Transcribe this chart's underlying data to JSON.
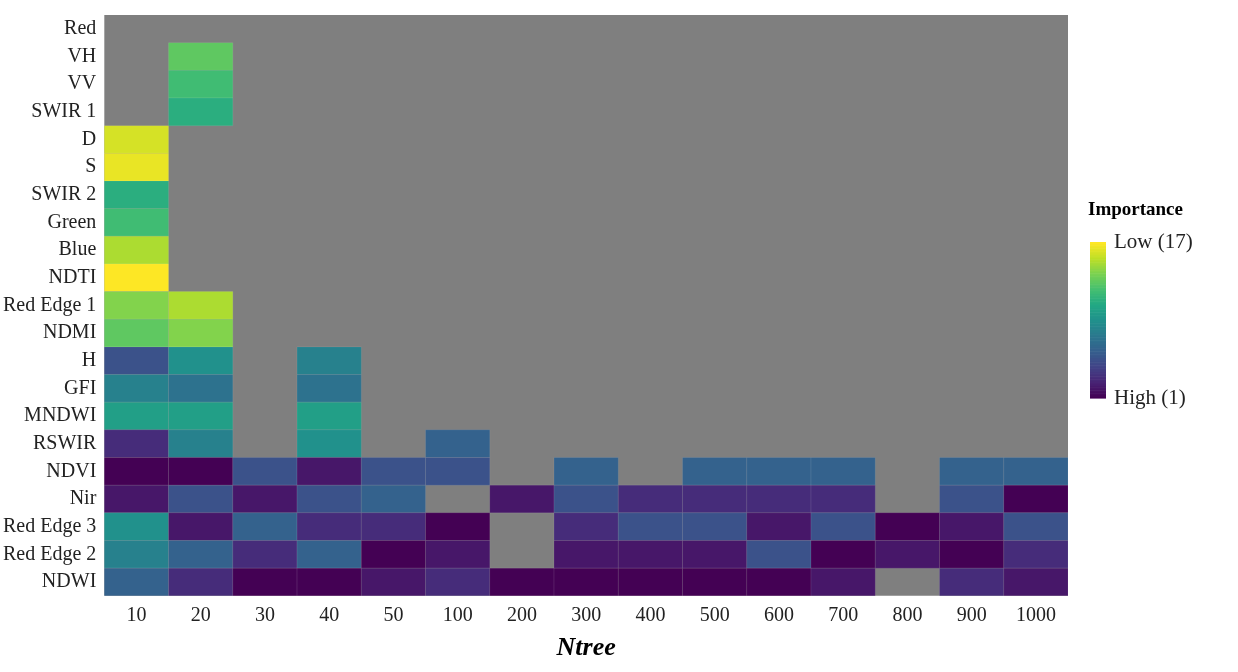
{
  "chart_data": {
    "type": "heatmap",
    "xlabel": "Ntree",
    "clabel": "Importance",
    "categories": [
      "10",
      "20",
      "30",
      "40",
      "50",
      "100",
      "200",
      "300",
      "400",
      "500",
      "600",
      "700",
      "800",
      "900",
      "1000"
    ],
    "y_categories": [
      "Red",
      "VH",
      "VV",
      "SWIR 1",
      "D",
      "S",
      "SWIR 2",
      "Green",
      "Blue",
      "NDTI",
      "Red Edge 1",
      "NDMI",
      "H",
      "GFI",
      "MNDWI",
      "RSWIR",
      "NDVI",
      "Nir",
      "Red Edge 3",
      "Red Edge 2",
      "NDWI"
    ],
    "cells": [
      [
        null,
        null,
        null,
        null,
        null,
        null,
        null,
        null,
        null,
        null,
        null,
        null,
        null,
        null,
        null
      ],
      [
        null,
        13,
        null,
        null,
        null,
        null,
        null,
        null,
        null,
        null,
        null,
        null,
        null,
        null,
        null
      ],
      [
        null,
        12,
        null,
        null,
        null,
        null,
        null,
        null,
        null,
        null,
        null,
        null,
        null,
        null,
        null
      ],
      [
        null,
        11,
        null,
        null,
        null,
        null,
        null,
        null,
        null,
        null,
        null,
        null,
        null,
        null,
        null
      ],
      [
        16,
        null,
        null,
        null,
        null,
        null,
        null,
        null,
        null,
        null,
        null,
        null,
        null,
        null,
        null
      ],
      [
        16.5,
        null,
        null,
        null,
        null,
        null,
        null,
        null,
        null,
        null,
        null,
        null,
        null,
        null,
        null
      ],
      [
        11,
        null,
        null,
        null,
        null,
        null,
        null,
        null,
        null,
        null,
        null,
        null,
        null,
        null,
        null
      ],
      [
        12,
        null,
        null,
        null,
        null,
        null,
        null,
        null,
        null,
        null,
        null,
        null,
        null,
        null,
        null
      ],
      [
        15,
        null,
        null,
        null,
        null,
        null,
        null,
        null,
        null,
        null,
        null,
        null,
        null,
        null,
        null
      ],
      [
        17,
        null,
        null,
        null,
        null,
        null,
        null,
        null,
        null,
        null,
        null,
        null,
        null,
        null,
        null
      ],
      [
        14,
        15,
        null,
        null,
        null,
        null,
        null,
        null,
        null,
        null,
        null,
        null,
        null,
        null,
        null
      ],
      [
        13,
        14,
        null,
        null,
        null,
        null,
        null,
        null,
        null,
        null,
        null,
        null,
        null,
        null,
        null
      ],
      [
        5,
        9,
        null,
        8,
        null,
        null,
        null,
        null,
        null,
        null,
        null,
        null,
        null,
        null,
        null
      ],
      [
        8,
        7,
        null,
        7,
        null,
        null,
        null,
        null,
        null,
        null,
        null,
        null,
        null,
        null,
        null
      ],
      [
        10,
        10,
        null,
        10,
        null,
        null,
        null,
        null,
        null,
        null,
        null,
        null,
        null,
        null,
        null
      ],
      [
        3,
        8,
        null,
        9,
        null,
        6,
        null,
        null,
        null,
        null,
        null,
        null,
        null,
        null,
        null
      ],
      [
        1,
        1,
        5,
        2,
        5,
        5,
        null,
        6,
        null,
        6,
        6,
        6,
        null,
        6,
        6
      ],
      [
        2,
        5,
        2,
        5,
        6,
        null,
        2,
        5,
        3,
        3,
        3,
        3,
        null,
        5,
        1
      ],
      [
        9,
        2,
        6,
        3,
        3,
        1,
        null,
        3,
        5,
        5,
        2,
        5,
        1,
        2,
        5
      ],
      [
        8,
        6,
        3,
        6,
        1,
        2,
        null,
        2,
        2,
        2,
        5,
        1,
        2,
        1,
        3
      ],
      [
        6,
        3,
        1,
        1,
        2,
        3,
        1,
        1,
        1,
        1,
        1,
        2,
        null,
        3,
        2
      ]
    ],
    "clim": [
      1,
      17
    ],
    "cticks": [
      {
        "value": 17,
        "label": "Low (17)"
      },
      {
        "value": 1,
        "label": "High (1)"
      }
    ]
  }
}
